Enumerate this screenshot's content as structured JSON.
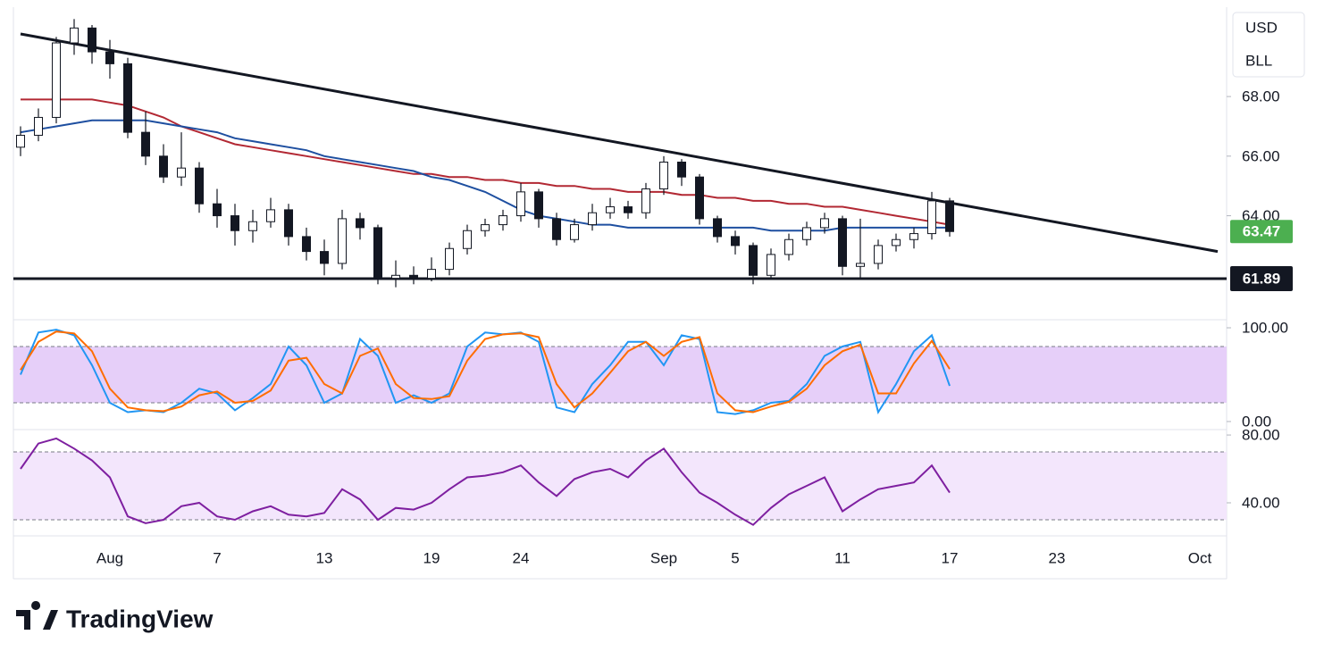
{
  "chart_data": [
    {
      "type": "candlestick",
      "categories": [
        null,
        null,
        null,
        null,
        null,
        "Aug",
        null,
        null,
        null,
        null,
        null,
        "7",
        null,
        null,
        null,
        null,
        null,
        "13",
        null,
        null,
        null,
        null,
        null,
        "19",
        null,
        null,
        null,
        null,
        "24",
        null,
        null,
        null,
        null,
        null,
        null,
        null,
        "Sep",
        null,
        null,
        null,
        "5",
        null,
        null,
        null,
        null,
        null,
        "11",
        null,
        null,
        null,
        null,
        null,
        "17",
        null,
        null,
        null,
        null,
        null,
        "23",
        null,
        null,
        null,
        null,
        null,
        null,
        null,
        "Oct",
        null
      ],
      "open": [
        66.3,
        66.7,
        67.3,
        69.8,
        70.3,
        69.5,
        69.1,
        66.8,
        66.0,
        65.3,
        65.6,
        64.4,
        64.0,
        63.5,
        63.8,
        64.2,
        63.3,
        62.8,
        62.4,
        63.9,
        63.6,
        61.9,
        62.0,
        61.9,
        62.2,
        62.9,
        63.5,
        63.7,
        64.0,
        64.8,
        63.9,
        63.2,
        63.7,
        64.1,
        64.3,
        64.1,
        64.9,
        65.8,
        65.3,
        63.9,
        63.3,
        63.0,
        62.0,
        62.7,
        63.2,
        63.6,
        63.9,
        62.3,
        62.4,
        63.0,
        63.2,
        63.4,
        64.5,
        null,
        null,
        null,
        null,
        null,
        null,
        null,
        null,
        null,
        null,
        null,
        null,
        null,
        null,
        null
      ],
      "high": [
        67.0,
        67.6,
        70.0,
        70.6,
        70.4,
        69.9,
        69.3,
        67.5,
        66.4,
        66.8,
        65.8,
        64.9,
        64.4,
        64.2,
        64.6,
        64.4,
        63.6,
        63.2,
        64.2,
        64.1,
        63.7,
        62.5,
        62.3,
        62.6,
        63.1,
        63.7,
        63.9,
        64.2,
        65.1,
        64.9,
        64.1,
        63.9,
        64.4,
        64.6,
        64.5,
        65.1,
        66.0,
        65.9,
        65.4,
        64.0,
        63.5,
        63.1,
        62.9,
        63.4,
        63.8,
        64.1,
        64.0,
        63.9,
        63.2,
        63.4,
        63.6,
        64.8,
        64.6,
        null,
        null,
        null,
        null,
        null,
        null,
        null,
        null,
        null,
        null,
        null,
        null,
        null,
        null,
        null
      ],
      "low": [
        66.0,
        66.5,
        67.1,
        69.4,
        69.1,
        68.6,
        66.6,
        65.7,
        65.1,
        65.0,
        64.1,
        63.6,
        63.0,
        63.1,
        63.6,
        63.0,
        62.5,
        62.0,
        62.2,
        63.2,
        61.7,
        61.6,
        61.7,
        61.8,
        62.0,
        62.7,
        63.3,
        63.5,
        63.8,
        63.6,
        63.0,
        63.1,
        63.5,
        63.9,
        63.9,
        63.9,
        64.7,
        65.0,
        63.7,
        63.1,
        62.7,
        61.7,
        61.9,
        62.5,
        63.0,
        63.4,
        62.0,
        61.9,
        62.2,
        62.8,
        62.9,
        63.2,
        63.3,
        null,
        null,
        null,
        null,
        null,
        null,
        null,
        null,
        null,
        null,
        null,
        null,
        null,
        null,
        null
      ],
      "close": [
        66.7,
        67.3,
        69.8,
        70.3,
        69.5,
        69.1,
        66.8,
        66.0,
        65.3,
        65.6,
        64.4,
        64.0,
        63.5,
        63.8,
        64.2,
        63.3,
        62.8,
        62.4,
        63.9,
        63.6,
        61.9,
        62.0,
        61.9,
        62.2,
        62.9,
        63.5,
        63.7,
        64.0,
        64.8,
        63.9,
        63.2,
        63.7,
        64.1,
        64.3,
        64.1,
        64.9,
        65.8,
        65.3,
        63.9,
        63.3,
        63.0,
        62.0,
        62.7,
        63.2,
        63.6,
        63.9,
        62.3,
        62.4,
        63.0,
        63.2,
        63.4,
        64.5,
        63.47,
        null,
        null,
        null,
        null,
        null,
        null,
        null,
        null,
        null,
        null,
        null,
        null,
        null,
        null,
        null
      ],
      "up_color": "#089981",
      "down_color": "#f23645",
      "lines": [
        {
          "color": "#b22833",
          "values": [
            67.9,
            67.9,
            67.9,
            67.9,
            67.9,
            67.8,
            67.7,
            67.5,
            67.3,
            67.0,
            66.8,
            66.6,
            66.4,
            66.3,
            66.2,
            66.1,
            66.0,
            65.9,
            65.8,
            65.7,
            65.6,
            65.5,
            65.4,
            65.4,
            65.3,
            65.3,
            65.2,
            65.2,
            65.1,
            65.1,
            65.0,
            65.0,
            64.9,
            64.9,
            64.8,
            64.8,
            64.8,
            64.7,
            64.7,
            64.6,
            64.6,
            64.5,
            64.5,
            64.4,
            64.4,
            64.3,
            64.3,
            64.2,
            64.1,
            64.0,
            63.9,
            63.8,
            63.7,
            null,
            null,
            null,
            null,
            null,
            null,
            null,
            null,
            null,
            null,
            null,
            null,
            null,
            null,
            null
          ]
        },
        {
          "color": "#1e4fa0",
          "values": [
            66.8,
            66.9,
            67.0,
            67.1,
            67.2,
            67.2,
            67.2,
            67.2,
            67.1,
            67.0,
            66.9,
            66.8,
            66.6,
            66.5,
            66.4,
            66.3,
            66.2,
            66.0,
            65.9,
            65.8,
            65.7,
            65.6,
            65.5,
            65.3,
            65.2,
            65.0,
            64.8,
            64.5,
            64.2,
            64.0,
            63.9,
            63.8,
            63.7,
            63.7,
            63.6,
            63.6,
            63.6,
            63.6,
            63.6,
            63.6,
            63.6,
            63.6,
            63.5,
            63.5,
            63.5,
            63.5,
            63.6,
            63.6,
            63.6,
            63.6,
            63.6,
            63.6,
            63.6,
            null,
            null,
            null,
            null,
            null,
            null,
            null,
            null,
            null,
            null,
            null,
            null,
            null,
            null,
            null
          ]
        }
      ],
      "trendline": {
        "x": [
          0,
          67
        ],
        "values": [
          70.1,
          62.8
        ]
      },
      "level": {
        "value": 61.89,
        "label": "61.89"
      },
      "last_price": {
        "value": 63.47,
        "label": "63.47",
        "color": "#4caf50"
      },
      "currency_labels": [
        "USD",
        "BLL"
      ],
      "ylim": [
        60.6,
        71.0
      ],
      "yticks": [
        {
          "value": 64,
          "label": "64.00"
        },
        {
          "value": 66,
          "label": "66.00"
        },
        {
          "value": 68,
          "label": "68.00"
        }
      ]
    },
    {
      "type": "line",
      "lines": [
        {
          "color": "#2196f3",
          "values": [
            50,
            95,
            98,
            92,
            60,
            20,
            10,
            12,
            10,
            20,
            35,
            30,
            12,
            25,
            40,
            80,
            60,
            20,
            30,
            88,
            70,
            20,
            28,
            20,
            30,
            80,
            95,
            93,
            95,
            85,
            15,
            10,
            40,
            60,
            85,
            85,
            60,
            92,
            88,
            10,
            8,
            12,
            20,
            22,
            40,
            70,
            80,
            85,
            10,
            40,
            75,
            92,
            38
          ]
        },
        {
          "color": "#ff6d00",
          "values": [
            55,
            85,
            96,
            94,
            75,
            35,
            15,
            12,
            11,
            16,
            28,
            32,
            20,
            22,
            33,
            65,
            68,
            40,
            30,
            70,
            78,
            40,
            25,
            24,
            27,
            65,
            88,
            93,
            94,
            90,
            40,
            15,
            30,
            52,
            75,
            85,
            70,
            85,
            90,
            30,
            12,
            10,
            16,
            21,
            35,
            60,
            75,
            82,
            30,
            30,
            62,
            86,
            56
          ]
        }
      ],
      "bands": [
        20,
        80
      ],
      "band_color": "#e6cff9",
      "ylim": [
        -8.6,
        106.7
      ],
      "yticks": [
        {
          "value": 0,
          "label": "0.00"
        },
        {
          "value": 100,
          "label": "100.00"
        }
      ]
    },
    {
      "type": "line",
      "lines": [
        {
          "color": "#7e1fa0",
          "values": [
            60,
            75,
            78,
            72,
            65,
            55,
            32,
            28,
            30,
            38,
            40,
            32,
            30,
            35,
            38,
            33,
            32,
            34,
            48,
            42,
            30,
            37,
            36,
            40,
            48,
            55,
            56,
            58,
            62,
            52,
            44,
            54,
            58,
            60,
            55,
            65,
            72,
            58,
            46,
            40,
            33,
            27,
            37,
            45,
            50,
            55,
            35,
            42,
            48,
            50,
            52,
            62,
            46
          ]
        }
      ],
      "bands": [
        30,
        70
      ],
      "band_color": "#f3e6fc",
      "ylim": [
        20.5,
        83.2
      ],
      "yticks": [
        {
          "value": 40,
          "label": "40.00"
        },
        {
          "value": 80,
          "label": "80.00"
        }
      ]
    }
  ],
  "footer": {
    "brand": "TradingView"
  }
}
